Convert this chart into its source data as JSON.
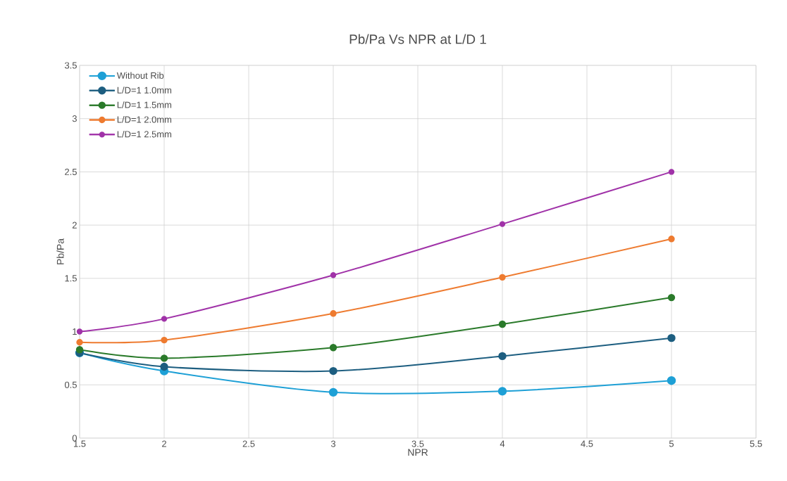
{
  "chart_data": {
    "type": "line",
    "title": "Pb/Pa Vs NPR at L/D 1",
    "xlabel": "NPR",
    "ylabel": "Pb/Pa",
    "x": [
      1.5,
      2,
      3,
      4,
      5
    ],
    "series": [
      {
        "name": "Without Rib",
        "color": "#1ea0d6",
        "values": [
          0.8,
          0.63,
          0.43,
          0.44,
          0.54
        ]
      },
      {
        "name": "L/D=1  1.0mm",
        "color": "#1d5e80",
        "values": [
          0.8,
          0.67,
          0.63,
          0.77,
          0.94
        ]
      },
      {
        "name": "L/D=1  1.5mm",
        "color": "#2a7a2a",
        "values": [
          0.83,
          0.75,
          0.85,
          1.07,
          1.32
        ]
      },
      {
        "name": "L/D=1  2.0mm",
        "color": "#ee7b30",
        "values": [
          0.9,
          0.92,
          1.17,
          1.51,
          1.87
        ]
      },
      {
        "name": "L/D=1  2.5mm",
        "color": "#a032a8",
        "values": [
          1.0,
          1.12,
          1.53,
          2.01,
          2.5
        ]
      }
    ],
    "xlim": [
      1.5,
      5.5
    ],
    "xticks": [
      1.5,
      2,
      2.5,
      3,
      3.5,
      4,
      4.5,
      5,
      5.5
    ],
    "ylim": [
      0,
      3.5
    ],
    "yticks": [
      0,
      0.5,
      1,
      1.5,
      2,
      2.5,
      3,
      3.5
    ],
    "grid": true,
    "legend": "top left",
    "marker": "circle",
    "line_style": "solid"
  }
}
